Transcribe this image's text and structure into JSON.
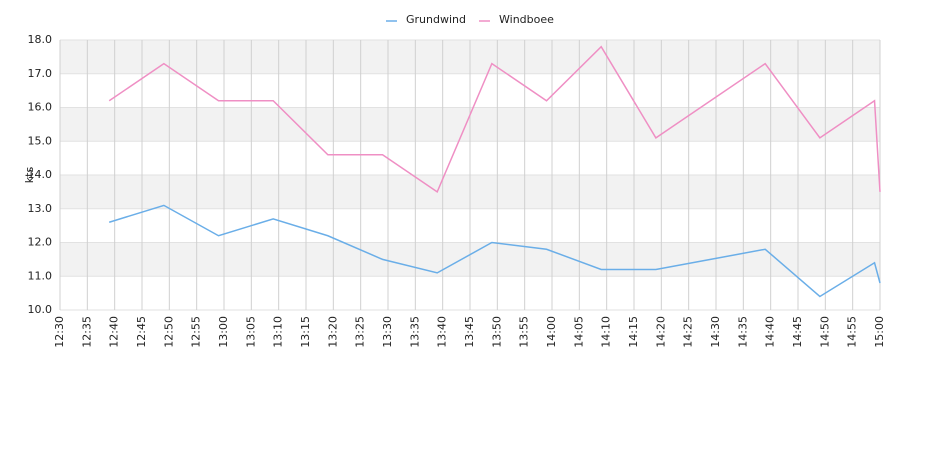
{
  "chart_data": {
    "type": "line",
    "x": [
      "12:39",
      "12:49",
      "12:59",
      "13:09",
      "13:19",
      "13:29",
      "13:39",
      "13:49",
      "13:59",
      "14:09",
      "14:19",
      "14:29",
      "14:39",
      "14:49",
      "14:59",
      "15:00"
    ],
    "series": [
      {
        "name": "Grundwind",
        "color": "#6aaee8",
        "values": [
          12.6,
          13.1,
          12.2,
          12.7,
          12.2,
          11.5,
          11.1,
          12.0,
          11.8,
          11.2,
          11.2,
          11.5,
          11.8,
          10.4,
          11.4,
          10.8
        ]
      },
      {
        "name": "Windboee",
        "color": "#ef8fc4",
        "values": [
          16.2,
          17.3,
          16.2,
          16.2,
          14.6,
          14.6,
          13.5,
          17.3,
          16.2,
          17.8,
          15.1,
          16.2,
          17.3,
          15.1,
          16.2,
          13.5
        ]
      }
    ],
    "y_label": "kts",
    "xlim": [
      "12:30",
      "15:00"
    ],
    "xticks": [
      "12:30",
      "12:35",
      "12:40",
      "12:45",
      "12:50",
      "12:55",
      "13:00",
      "13:05",
      "13:10",
      "13:15",
      "13:20",
      "13:25",
      "13:30",
      "13:35",
      "13:40",
      "13:45",
      "13:50",
      "13:55",
      "14:00",
      "14:05",
      "14:10",
      "14:15",
      "14:20",
      "14:25",
      "14:30",
      "14:35",
      "14:40",
      "14:45",
      "14:50",
      "14:55",
      "15:00"
    ],
    "ylim": [
      10,
      18
    ],
    "yticks": [
      {
        "value": 10,
        "label": "10.0"
      },
      {
        "value": 11,
        "label": "11.0"
      },
      {
        "value": 12,
        "label": "12.0"
      },
      {
        "value": 13,
        "label": "13.0"
      },
      {
        "value": 14,
        "label": "14.0"
      },
      {
        "value": 15,
        "label": "15.0"
      },
      {
        "value": 16,
        "label": "16.0"
      },
      {
        "value": 17,
        "label": "17.0"
      },
      {
        "value": 18,
        "label": "18.0"
      }
    ],
    "grid": true,
    "bands": true,
    "legend": "top"
  }
}
